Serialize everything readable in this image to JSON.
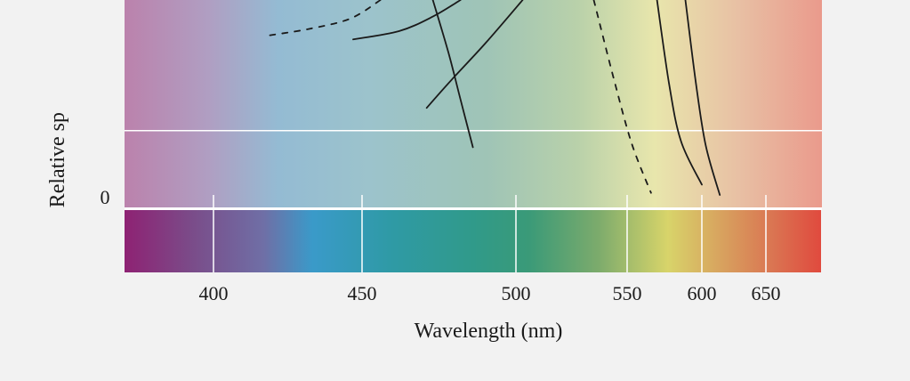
{
  "chart_data": {
    "type": "line",
    "title": "",
    "xlabel": "Wavelength (nm)",
    "ylabel": "Relative sp",
    "y_tick_labels": [
      "0"
    ],
    "x_ticks": [
      {
        "value": 400,
        "label": "400"
      },
      {
        "value": 450,
        "label": "450"
      },
      {
        "value": 500,
        "label": "500"
      },
      {
        "value": 550,
        "label": "550"
      },
      {
        "value": 600,
        "label": "600"
      },
      {
        "value": 650,
        "label": "650"
      }
    ],
    "xlim": [
      371,
      680
    ],
    "ylim": [
      0,
      1
    ],
    "grid": {
      "horizontal": [
        0.37
      ],
      "vertical_ticks_on_spectrum": true
    },
    "series": [
      {
        "style": "dashed",
        "x": [
          419,
          432,
          446,
          456
        ],
        "y": [
          0.83,
          0.86,
          0.91,
          1.0
        ]
      },
      {
        "style": "solid",
        "x": [
          447,
          462,
          473,
          482
        ],
        "y": [
          0.81,
          0.85,
          0.92,
          1.0
        ]
      },
      {
        "style": "solid",
        "x": [
          473,
          478,
          482,
          486
        ],
        "y": [
          1.0,
          0.75,
          0.52,
          0.29
        ]
      },
      {
        "style": "solid",
        "x": [
          471,
          480,
          490,
          503
        ],
        "y": [
          0.48,
          0.63,
          0.79,
          1.0
        ]
      },
      {
        "style": "dashed",
        "x": [
          535,
          544,
          553,
          566
        ],
        "y": [
          1.0,
          0.62,
          0.31,
          0.07
        ]
      },
      {
        "style": "solid",
        "x": [
          570,
          578,
          586,
          600
        ],
        "y": [
          1.0,
          0.6,
          0.32,
          0.11
        ]
      },
      {
        "style": "solid",
        "x": [
          589,
          596,
          603,
          614
        ],
        "y": [
          1.0,
          0.6,
          0.3,
          0.06
        ]
      }
    ],
    "colors": {
      "background": "#f2f2f2",
      "curve": "#1a1a1a",
      "grid": "#ffffff",
      "upper_gradient": [
        {
          "offset": 0.0,
          "color": "#bb82ac"
        },
        {
          "offset": 0.12,
          "color": "#b09ec2"
        },
        {
          "offset": 0.22,
          "color": "#94bbd3"
        },
        {
          "offset": 0.35,
          "color": "#9cc3cc"
        },
        {
          "offset": 0.52,
          "color": "#9fc4b6"
        },
        {
          "offset": 0.65,
          "color": "#b9d1aa"
        },
        {
          "offset": 0.76,
          "color": "#e8e6ac"
        },
        {
          "offset": 0.88,
          "color": "#e8c0a4"
        },
        {
          "offset": 1.0,
          "color": "#ea9a8c"
        }
      ],
      "spectrum_gradient": [
        {
          "offset": 0.0,
          "color": "#8e2273"
        },
        {
          "offset": 0.1,
          "color": "#7a4d8a"
        },
        {
          "offset": 0.2,
          "color": "#6f6fa6"
        },
        {
          "offset": 0.27,
          "color": "#3a9ac9"
        },
        {
          "offset": 0.38,
          "color": "#2f9aa6"
        },
        {
          "offset": 0.5,
          "color": "#309a8a"
        },
        {
          "offset": 0.58,
          "color": "#3a9a78"
        },
        {
          "offset": 0.68,
          "color": "#7cab6c"
        },
        {
          "offset": 0.78,
          "color": "#d8d46a"
        },
        {
          "offset": 0.86,
          "color": "#d8a05e"
        },
        {
          "offset": 0.93,
          "color": "#da7552"
        },
        {
          "offset": 1.0,
          "color": "#e04a3e"
        }
      ]
    }
  }
}
